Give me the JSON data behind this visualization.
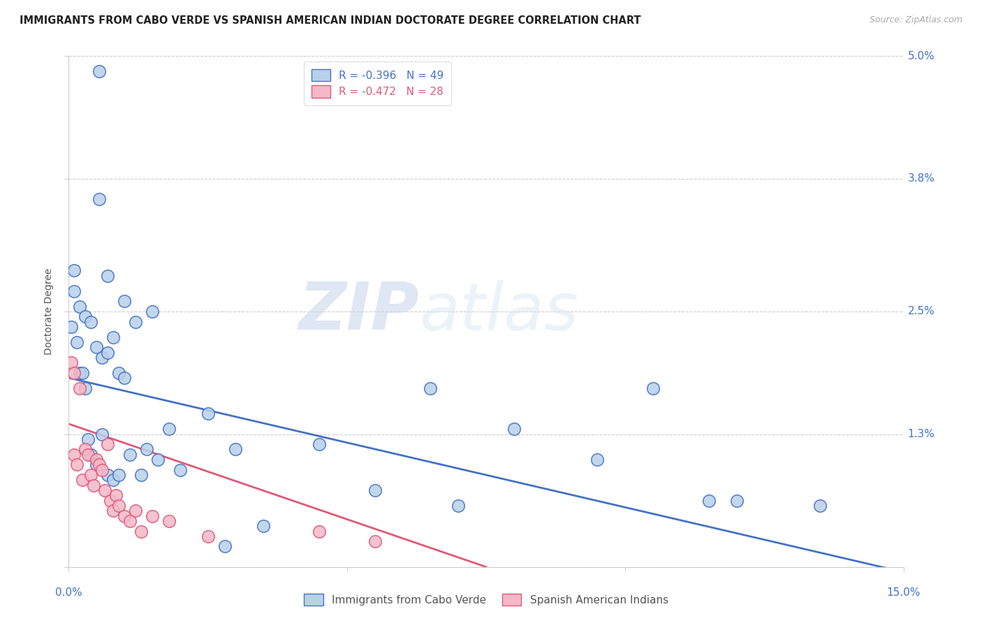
{
  "title": "IMMIGRANTS FROM CABO VERDE VS SPANISH AMERICAN INDIAN DOCTORATE DEGREE CORRELATION CHART",
  "source": "Source: ZipAtlas.com",
  "ylabel": "Doctorate Degree",
  "xmin": 0.0,
  "xmax": 15.0,
  "ymin": 0.0,
  "ymax": 5.0,
  "watermark_zip": "ZIP",
  "watermark_atlas": "atlas",
  "legend1_label": "R = -0.396   N = 49",
  "legend2_label": "R = -0.472   N = 28",
  "cabo_verde_color": "#b8d0ea",
  "spanish_indian_color": "#f4b8c8",
  "trend1_color": "#4472c4",
  "trend2_color": "#e05878",
  "cabo_verde_x": [
    0.55,
    0.55,
    0.7,
    1.0,
    1.5,
    0.2,
    0.3,
    0.4,
    0.5,
    0.6,
    0.7,
    0.8,
    0.9,
    1.0,
    1.2,
    1.4,
    1.8,
    2.5,
    3.0,
    4.5,
    6.5,
    8.0,
    9.5,
    10.5,
    0.15,
    0.2,
    0.25,
    0.3,
    0.35,
    0.4,
    0.5,
    0.6,
    0.7,
    0.8,
    0.9,
    1.1,
    1.3,
    1.6,
    2.0,
    2.8,
    3.5,
    5.5,
    7.0,
    11.5,
    12.0,
    13.5,
    0.1,
    0.1,
    0.05
  ],
  "cabo_verde_y": [
    4.85,
    3.6,
    2.85,
    2.6,
    2.5,
    2.55,
    2.45,
    2.4,
    2.15,
    2.05,
    2.1,
    2.25,
    1.9,
    1.85,
    2.4,
    1.15,
    1.35,
    1.5,
    1.15,
    1.2,
    1.75,
    1.35,
    1.05,
    1.75,
    2.2,
    1.9,
    1.9,
    1.75,
    1.25,
    1.1,
    1.0,
    1.3,
    0.9,
    0.85,
    0.9,
    1.1,
    0.9,
    1.05,
    0.95,
    0.2,
    0.4,
    0.75,
    0.6,
    0.65,
    0.65,
    0.6,
    2.9,
    2.7,
    2.35
  ],
  "spanish_indian_x": [
    0.05,
    0.1,
    0.1,
    0.15,
    0.2,
    0.25,
    0.3,
    0.35,
    0.4,
    0.45,
    0.5,
    0.55,
    0.6,
    0.65,
    0.7,
    0.75,
    0.8,
    0.85,
    0.9,
    1.0,
    1.1,
    1.2,
    1.3,
    1.5,
    1.8,
    2.5,
    4.5,
    5.5
  ],
  "spanish_indian_y": [
    2.0,
    1.9,
    1.1,
    1.0,
    1.75,
    0.85,
    1.15,
    1.1,
    0.9,
    0.8,
    1.05,
    1.0,
    0.95,
    0.75,
    1.2,
    0.65,
    0.55,
    0.7,
    0.6,
    0.5,
    0.45,
    0.55,
    0.35,
    0.5,
    0.45,
    0.3,
    0.35,
    0.25
  ],
  "trend1_x0": 0.0,
  "trend1_y0": 1.85,
  "trend1_x1": 15.0,
  "trend1_y1": -0.05,
  "trend2_x0": 0.0,
  "trend2_y0": 1.4,
  "trend2_x1": 7.5,
  "trend2_y1": 0.0,
  "title_fontsize": 10.5,
  "source_fontsize": 9,
  "axis_label_color": "#4472c4",
  "grid_color": "#cccccc",
  "background_color": "#ffffff"
}
